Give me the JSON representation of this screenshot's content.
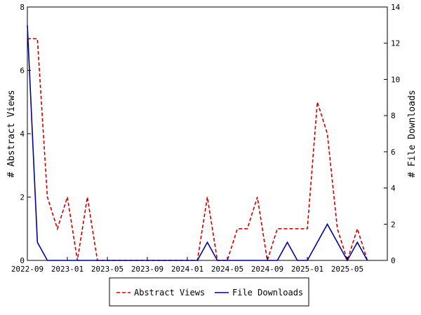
{
  "chart_data": {
    "type": "line",
    "x_tick_labels": [
      "2022-09",
      "2023-01",
      "2023-05",
      "2023-09",
      "2024-01",
      "2024-05",
      "2024-09",
      "2025-01",
      "2025-05"
    ],
    "left_axis": {
      "label": "# Abstract Views",
      "range": [
        0,
        8
      ],
      "ticks": [
        0,
        2,
        4,
        6,
        8
      ]
    },
    "right_axis": {
      "label": "# File Downloads",
      "range": [
        0,
        14
      ],
      "ticks": [
        0,
        2,
        4,
        6,
        8,
        10,
        12,
        14
      ]
    },
    "series": [
      {
        "name": "Abstract Views",
        "axis": "left",
        "color": "#cc0000",
        "dashed": true,
        "points": [
          [
            "2022-09",
            7
          ],
          [
            "2022-10",
            7
          ],
          [
            "2022-11",
            2
          ],
          [
            "2022-12",
            1
          ],
          [
            "2023-01",
            2
          ],
          [
            "2023-02",
            0
          ],
          [
            "2023-03",
            2
          ],
          [
            "2023-04",
            0
          ],
          [
            "2023-05",
            0
          ],
          [
            "2023-06",
            0
          ],
          [
            "2023-07",
            0
          ],
          [
            "2023-08",
            0
          ],
          [
            "2023-09",
            0
          ],
          [
            "2023-10",
            0
          ],
          [
            "2023-11",
            0
          ],
          [
            "2023-12",
            0
          ],
          [
            "2024-01",
            0
          ],
          [
            "2024-02",
            0
          ],
          [
            "2024-03",
            2
          ],
          [
            "2024-04",
            0
          ],
          [
            "2024-05",
            0
          ],
          [
            "2024-06",
            1
          ],
          [
            "2024-07",
            1
          ],
          [
            "2024-08",
            2
          ],
          [
            "2024-09",
            0
          ],
          [
            "2024-10",
            1
          ],
          [
            "2024-11",
            1
          ],
          [
            "2024-12",
            1
          ],
          [
            "2025-01",
            1
          ],
          [
            "2025-02",
            5
          ],
          [
            "2025-03",
            4
          ],
          [
            "2025-04",
            1
          ],
          [
            "2025-05",
            0
          ],
          [
            "2025-06",
            1
          ],
          [
            "2025-07",
            0
          ]
        ]
      },
      {
        "name": "File Downloads",
        "axis": "right",
        "color": "#000099",
        "dashed": false,
        "points": [
          [
            "2022-09",
            13
          ],
          [
            "2022-10",
            1
          ],
          [
            "2022-11",
            0
          ],
          [
            "2022-12",
            0
          ],
          [
            "2023-01",
            0
          ],
          [
            "2023-02",
            0
          ],
          [
            "2023-03",
            0
          ],
          [
            "2023-04",
            0
          ],
          [
            "2023-05",
            0
          ],
          [
            "2023-06",
            0
          ],
          [
            "2023-07",
            0
          ],
          [
            "2023-08",
            0
          ],
          [
            "2023-09",
            0
          ],
          [
            "2023-10",
            0
          ],
          [
            "2023-11",
            0
          ],
          [
            "2023-12",
            0
          ],
          [
            "2024-01",
            0
          ],
          [
            "2024-02",
            0
          ],
          [
            "2024-03",
            1
          ],
          [
            "2024-04",
            0
          ],
          [
            "2024-05",
            0
          ],
          [
            "2024-06",
            0
          ],
          [
            "2024-07",
            0
          ],
          [
            "2024-08",
            0
          ],
          [
            "2024-09",
            0
          ],
          [
            "2024-10",
            0
          ],
          [
            "2024-11",
            1
          ],
          [
            "2024-12",
            0
          ],
          [
            "2025-01",
            0
          ],
          [
            "2025-02",
            1
          ],
          [
            "2025-03",
            2
          ],
          [
            "2025-04",
            1
          ],
          [
            "2025-05",
            0
          ],
          [
            "2025-06",
            1
          ],
          [
            "2025-07",
            0
          ]
        ]
      }
    ],
    "legend": {
      "placement": "bottom-center",
      "entries": [
        "Abstract Views",
        "File Downloads"
      ]
    },
    "grid": false
  }
}
